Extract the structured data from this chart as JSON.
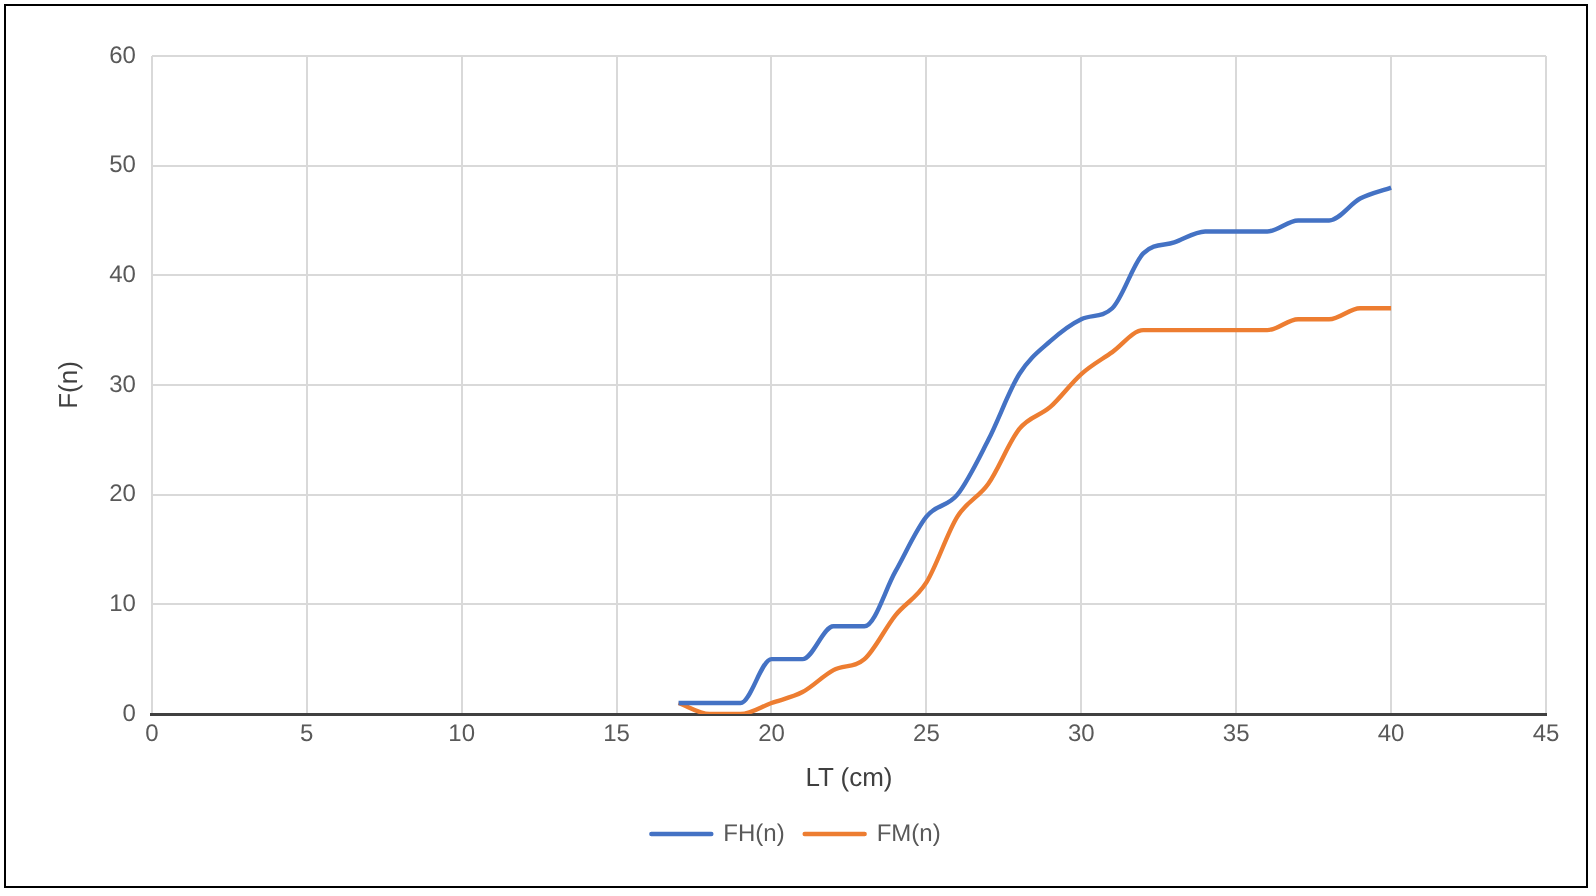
{
  "chart_data": {
    "type": "line",
    "xlabel": "LT (cm)",
    "ylabel": "F(n)",
    "x": [
      17,
      18,
      19,
      20,
      21,
      22,
      23,
      24,
      25,
      26,
      27,
      28,
      29,
      30,
      31,
      32,
      33,
      34,
      35,
      36,
      37,
      38,
      39,
      40
    ],
    "series": [
      {
        "name": "FH(n)",
        "color": "#4472c4",
        "values": [
          1,
          1,
          1,
          5,
          5,
          8,
          8,
          13,
          18,
          20,
          25,
          31,
          34,
          36,
          37,
          42,
          43,
          44,
          44,
          44,
          45,
          45,
          47,
          48
        ]
      },
      {
        "name": "FM(n)",
        "color": "#ed7d31",
        "values": [
          1,
          0,
          0,
          1,
          2,
          4,
          5,
          9,
          12,
          18,
          21,
          26,
          28,
          31,
          33,
          35,
          35,
          35,
          35,
          35,
          36,
          36,
          37,
          37
        ]
      }
    ],
    "xlim": [
      0,
      45
    ],
    "xticks": [
      0,
      5,
      10,
      15,
      20,
      25,
      30,
      35,
      40,
      45
    ],
    "ylim": [
      0,
      60
    ],
    "yticks": [
      0,
      10,
      20,
      30,
      40,
      50,
      60
    ],
    "grid": true,
    "legend": "bottom",
    "marker": "none",
    "line_style": "solid"
  }
}
